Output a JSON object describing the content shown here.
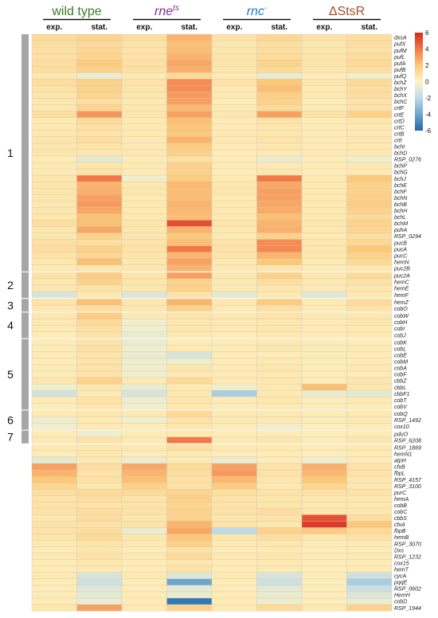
{
  "chart_data": {
    "type": "heatmap",
    "columns": [
      {
        "strain": "wild type",
        "phase": "exp."
      },
      {
        "strain": "wild type",
        "phase": "stat."
      },
      {
        "strain": "rne",
        "phase": "exp."
      },
      {
        "strain": "rne",
        "phase": "stat."
      },
      {
        "strain": "rnc",
        "phase": "exp."
      },
      {
        "strain": "rnc",
        "phase": "stat."
      },
      {
        "strain": "ΔStsR",
        "phase": "exp."
      },
      {
        "strain": "ΔStsR",
        "phase": "stat."
      }
    ],
    "strains": [
      {
        "name": "wild type",
        "sup": "",
        "color": "#3a7d26",
        "italic": false
      },
      {
        "name": "rne",
        "sup": "ts",
        "color": "#7d2e9e",
        "italic": true
      },
      {
        "name": "rnc",
        "sup": "-",
        "color": "#1a7fc2",
        "italic": true
      },
      {
        "name": "ΔStsR",
        "sup": "",
        "color": "#a0522d",
        "italic": false
      }
    ],
    "phases": [
      "exp.",
      "stat.",
      "exp.",
      "stat.",
      "exp.",
      "stat.",
      "exp.",
      "stat."
    ],
    "clusters": [
      {
        "label": "1",
        "start": 0,
        "end": 36
      },
      {
        "label": "2",
        "start": 37,
        "end": 40
      },
      {
        "label": "3",
        "start": 41,
        "end": 42
      },
      {
        "label": "4",
        "start": 43,
        "end": 46
      },
      {
        "label": "5",
        "start": 47,
        "end": 57
      },
      {
        "label": "6",
        "start": 58,
        "end": 60
      },
      {
        "label": "7",
        "start": 61,
        "end": 62
      }
    ],
    "group_breaks_after": [
      36,
      40,
      42,
      46,
      57,
      60,
      62
    ],
    "colorbar": {
      "min": -6,
      "max": 6,
      "ticks": [
        "6",
        "4",
        "2",
        "0",
        "-2",
        "-4",
        "-6"
      ]
    },
    "genes": [
      "dxsA",
      "pufX",
      "pufM",
      "pufL",
      "pufA",
      "pufB",
      "pufQ",
      "bchZ",
      "bchY",
      "bchX",
      "bchC",
      "crtF",
      "crtE",
      "crtD",
      "crtC",
      "crtB",
      "crtI",
      "bchI",
      "bchD",
      "RSP_0276",
      "bchP",
      "bchG",
      "bchJ",
      "bchE",
      "bchF",
      "bchN",
      "bchB",
      "bchH",
      "bchL",
      "bchM",
      "puhA",
      "RSP_0294",
      "pucB",
      "pucA",
      "pucC",
      "hemN",
      "puc2B",
      "puc2A",
      "hemC",
      "hemE",
      "hemF",
      "hemZ",
      "cobO",
      "cobW",
      "cobH",
      "cobI",
      "cobJ",
      "cobK",
      "cobL",
      "cobE",
      "cobM",
      "cobA",
      "cobF",
      "cbbZ",
      "cbbL",
      "cbbF1",
      "cobT",
      "cobV",
      "cobQ",
      "RSP_1492",
      "cox10",
      "pduO",
      "RSP_6208",
      "RSP_1869",
      "hemN1",
      "atpH",
      "cfxB",
      "fbpL",
      "RSP_4157",
      "RSP_3100",
      "purC",
      "hemA",
      "cobB",
      "cobC",
      "cbbS",
      "cfxA",
      "fbpB",
      "hemB",
      "RSP_3070",
      "Dxs",
      "RSP_1232",
      "cox15",
      "hemT",
      "cycA",
      "pqqE",
      "RSP_0602",
      "HemH",
      "cobD",
      "RSP_1944"
    ],
    "values": [
      [
        1.2,
        1.5,
        1.0,
        2.5,
        0.8,
        1.3,
        0.8,
        1.0
      ],
      [
        1.0,
        1.2,
        0.8,
        2.2,
        0.6,
        1.0,
        0.6,
        1.0
      ],
      [
        0.9,
        1.3,
        0.8,
        2.3,
        0.6,
        1.0,
        0.6,
        0.9
      ],
      [
        0.9,
        1.4,
        0.8,
        2.5,
        0.7,
        1.1,
        0.7,
        1.0
      ],
      [
        1.0,
        1.8,
        0.9,
        2.8,
        0.7,
        1.5,
        0.7,
        1.2
      ],
      [
        1.0,
        1.6,
        0.9,
        2.6,
        0.6,
        1.2,
        0.6,
        1.0
      ],
      [
        0.6,
        -0.6,
        0.5,
        1.2,
        0.5,
        -0.6,
        0.4,
        -0.4
      ],
      [
        1.0,
        1.6,
        0.8,
        3.5,
        0.8,
        2.0,
        0.6,
        1.2
      ],
      [
        0.8,
        1.5,
        0.7,
        3.5,
        0.5,
        2.2,
        0.5,
        1.0
      ],
      [
        0.7,
        1.4,
        0.6,
        3.2,
        0.5,
        1.7,
        0.5,
        1.0
      ],
      [
        0.6,
        1.0,
        0.5,
        3.0,
        0.4,
        1.5,
        0.4,
        0.8
      ],
      [
        0.6,
        1.5,
        0.6,
        2.4,
        0.5,
        1.2,
        0.5,
        0.8
      ],
      [
        1.0,
        3.3,
        0.7,
        3.0,
        0.6,
        3.0,
        0.8,
        1.6
      ],
      [
        0.5,
        1.1,
        0.5,
        2.2,
        0.4,
        0.8,
        0.4,
        0.6
      ],
      [
        0.5,
        0.9,
        0.5,
        2.0,
        0.4,
        0.6,
        0.4,
        0.5
      ],
      [
        0.6,
        0.8,
        0.5,
        2.0,
        0.5,
        0.6,
        0.4,
        0.5
      ],
      [
        0.7,
        1.0,
        0.5,
        2.5,
        0.5,
        0.8,
        0.4,
        0.6
      ],
      [
        0.6,
        0.8,
        0.5,
        1.8,
        0.4,
        0.6,
        0.4,
        0.5
      ],
      [
        0.6,
        0.6,
        0.5,
        1.6,
        0.4,
        0.5,
        0.4,
        0.5
      ],
      [
        0.4,
        -0.8,
        0.4,
        0.9,
        0.4,
        -0.6,
        0.3,
        -0.5
      ],
      [
        0.5,
        0.7,
        0.5,
        1.5,
        0.4,
        0.5,
        0.4,
        0.5
      ],
      [
        0.5,
        0.8,
        0.4,
        1.6,
        0.4,
        0.6,
        0.4,
        0.5
      ],
      [
        0.6,
        4.0,
        -0.4,
        1.8,
        0.5,
        4.0,
        0.5,
        2.0
      ],
      [
        0.7,
        2.5,
        0.6,
        2.4,
        0.6,
        2.8,
        0.5,
        1.5
      ],
      [
        0.7,
        2.6,
        0.6,
        2.3,
        0.6,
        3.0,
        0.5,
        1.5
      ],
      [
        0.6,
        3.0,
        0.5,
        2.3,
        0.5,
        3.0,
        0.5,
        1.6
      ],
      [
        0.6,
        3.2,
        0.5,
        2.5,
        0.5,
        2.8,
        0.5,
        1.8
      ],
      [
        0.6,
        2.8,
        0.5,
        2.4,
        0.5,
        2.7,
        0.5,
        1.5
      ],
      [
        0.6,
        2.2,
        0.5,
        2.3,
        0.5,
        2.2,
        0.5,
        1.2
      ],
      [
        1.0,
        2.2,
        0.7,
        5.0,
        0.7,
        2.5,
        0.6,
        1.5
      ],
      [
        0.6,
        2.8,
        0.6,
        2.5,
        0.5,
        2.6,
        0.5,
        1.4
      ],
      [
        0.6,
        1.5,
        0.6,
        2.0,
        0.5,
        1.5,
        0.5,
        1.0
      ],
      [
        0.9,
        1.0,
        0.8,
        2.2,
        0.8,
        3.5,
        0.6,
        1.3
      ],
      [
        1.0,
        1.6,
        0.8,
        4.0,
        0.8,
        3.6,
        0.6,
        2.0
      ],
      [
        0.8,
        1.3,
        0.7,
        2.5,
        0.7,
        2.5,
        0.6,
        1.5
      ],
      [
        0.6,
        2.2,
        0.6,
        3.0,
        0.5,
        2.0,
        0.5,
        1.2
      ],
      [
        0.5,
        0.6,
        0.6,
        2.5,
        0.5,
        0.7,
        0.4,
        0.6
      ],
      [
        0.8,
        1.8,
        0.7,
        3.0,
        0.6,
        1.6,
        0.6,
        1.2
      ],
      [
        0.6,
        1.5,
        0.7,
        1.5,
        0.5,
        1.0,
        0.5,
        0.8
      ],
      [
        0.6,
        0.8,
        0.6,
        1.6,
        0.5,
        0.6,
        0.5,
        0.6
      ],
      [
        -1.2,
        0.5,
        -1.0,
        0.8,
        -0.8,
        0.5,
        -1.0,
        0.5
      ],
      [
        0.8,
        2.2,
        0.6,
        2.5,
        0.6,
        1.8,
        0.5,
        1.2
      ],
      [
        0.6,
        1.0,
        0.6,
        1.6,
        0.5,
        0.9,
        0.5,
        0.8
      ],
      [
        0.6,
        1.8,
        0.5,
        0.8,
        0.5,
        0.8,
        0.5,
        0.6
      ],
      [
        0.5,
        1.2,
        -0.4,
        0.6,
        0.5,
        0.6,
        0.4,
        0.6
      ],
      [
        0.5,
        0.9,
        -0.4,
        0.6,
        0.5,
        0.6,
        0.4,
        0.5
      ],
      [
        0.4,
        0.8,
        -0.6,
        0.5,
        0.4,
        0.5,
        0.4,
        0.5
      ],
      [
        0.4,
        0.8,
        -0.6,
        0.4,
        0.4,
        0.5,
        0.3,
        0.4
      ],
      [
        0.4,
        0.9,
        -0.5,
        0.5,
        0.4,
        0.6,
        0.4,
        0.5
      ],
      [
        0.4,
        0.7,
        -0.6,
        -1.2,
        0.4,
        0.4,
        0.3,
        0.4
      ],
      [
        0.4,
        0.8,
        -0.5,
        -0.5,
        0.4,
        0.5,
        0.3,
        0.4
      ],
      [
        0.4,
        0.8,
        -0.4,
        0.6,
        0.4,
        0.6,
        0.3,
        0.5
      ],
      [
        0.4,
        0.8,
        -0.5,
        0.5,
        0.4,
        0.5,
        0.3,
        0.4
      ],
      [
        0.6,
        1.6,
        0.5,
        1.2,
        0.5,
        0.6,
        0.4,
        0.6
      ],
      [
        -0.4,
        0.6,
        -0.6,
        0.5,
        -0.4,
        0.5,
        2.2,
        0.6
      ],
      [
        -1.4,
        0.5,
        -1.2,
        0.6,
        -2.5,
        0.5,
        -0.6,
        -0.8
      ],
      [
        0.4,
        0.8,
        -0.5,
        0.6,
        0.4,
        0.6,
        0.3,
        0.5
      ],
      [
        0.4,
        0.7,
        -0.4,
        0.6,
        0.4,
        0.5,
        0.3,
        0.4
      ],
      [
        0.5,
        0.6,
        0.5,
        1.2,
        0.5,
        0.5,
        0.4,
        0.5
      ],
      [
        -0.5,
        0.5,
        -0.4,
        0.8,
        0.5,
        0.5,
        0.4,
        0.5
      ],
      [
        -0.4,
        0.5,
        0.4,
        0.6,
        0.4,
        -0.4,
        0.3,
        0.4
      ],
      [
        0.4,
        -0.5,
        0.4,
        0.5,
        0.4,
        0.4,
        0.3,
        0.4
      ],
      [
        0.5,
        0.8,
        0.5,
        4.0,
        0.5,
        0.6,
        0.4,
        0.6
      ],
      [
        0.5,
        0.6,
        0.5,
        1.0,
        0.5,
        0.5,
        0.4,
        0.5
      ],
      [
        0.4,
        0.6,
        0.4,
        0.5,
        0.4,
        0.4,
        0.3,
        0.4
      ],
      [
        -0.8,
        0.5,
        -0.6,
        0.5,
        -0.6,
        0.4,
        -0.5,
        0.4
      ],
      [
        3.0,
        1.0,
        2.8,
        1.2,
        3.0,
        0.8,
        2.6,
        0.8
      ],
      [
        2.5,
        0.8,
        2.5,
        1.0,
        3.2,
        0.8,
        2.4,
        0.8
      ],
      [
        2.0,
        0.8,
        2.2,
        0.9,
        2.4,
        0.6,
        2.0,
        0.6
      ],
      [
        1.4,
        0.6,
        1.6,
        0.8,
        1.8,
        0.5,
        1.4,
        0.6
      ],
      [
        1.0,
        1.2,
        1.2,
        1.4,
        1.0,
        0.8,
        0.9,
        0.8
      ],
      [
        0.8,
        1.0,
        0.8,
        1.6,
        0.8,
        0.6,
        0.6,
        0.6
      ],
      [
        0.8,
        0.8,
        0.8,
        1.4,
        0.8,
        0.7,
        0.6,
        0.6
      ],
      [
        0.8,
        1.0,
        0.8,
        1.5,
        0.8,
        1.0,
        0.6,
        0.6
      ],
      [
        0.6,
        1.0,
        0.7,
        1.5,
        0.7,
        0.8,
        5.0,
        1.0
      ],
      [
        0.8,
        0.8,
        0.8,
        2.5,
        0.8,
        0.6,
        5.5,
        2.0
      ],
      [
        0.8,
        1.0,
        -0.6,
        2.8,
        -2.0,
        1.5,
        1.8,
        1.2
      ],
      [
        0.7,
        1.2,
        0.6,
        2.0,
        0.6,
        1.0,
        0.6,
        0.8
      ],
      [
        0.5,
        0.7,
        0.5,
        1.6,
        0.5,
        0.6,
        0.4,
        0.5
      ],
      [
        0.4,
        0.6,
        0.4,
        0.8,
        0.4,
        0.5,
        0.3,
        0.4
      ],
      [
        0.5,
        0.8,
        0.5,
        1.2,
        0.5,
        0.6,
        0.4,
        0.5
      ],
      [
        0.4,
        0.6,
        0.4,
        0.6,
        0.4,
        0.5,
        0.3,
        0.4
      ],
      [
        0.4,
        0.5,
        0.4,
        0.8,
        0.4,
        0.5,
        0.3,
        0.4
      ],
      [
        0.5,
        -1.2,
        0.5,
        -1.0,
        0.5,
        -1.2,
        0.4,
        -1.5
      ],
      [
        0.4,
        -1.5,
        0.4,
        -4.0,
        0.4,
        -1.5,
        0.3,
        -2.5
      ],
      [
        0.4,
        -1.0,
        0.4,
        -0.8,
        0.4,
        -0.8,
        0.3,
        -1.6
      ],
      [
        0.4,
        -0.8,
        0.4,
        -0.6,
        0.4,
        -0.6,
        0.3,
        -1.0
      ],
      [
        0.4,
        -0.6,
        0.4,
        -5.5,
        0.4,
        -0.5,
        0.3,
        -0.6
      ],
      [
        0.6,
        3.0,
        0.5,
        1.5,
        0.5,
        1.2,
        0.5,
        1.5
      ]
    ]
  }
}
